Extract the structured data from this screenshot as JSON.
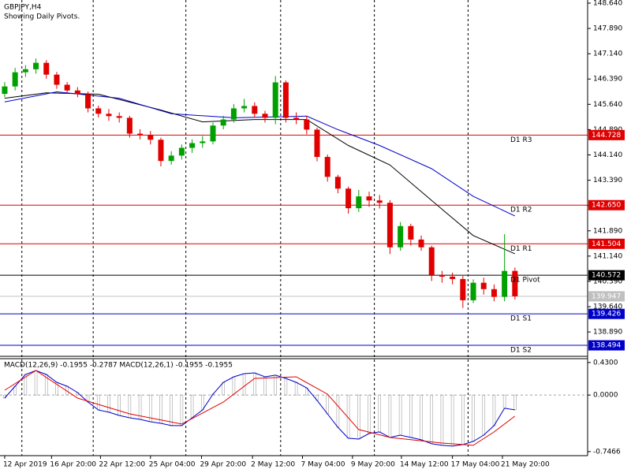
{
  "chart_data": [
    {
      "type": "candlestick",
      "title": "GBPJPY,H4",
      "subtitle": "Showing Daily Pivots.",
      "xlim": [
        -0.45,
        55.98
      ],
      "xticks": [
        {
          "value": 0,
          "label": "12 Apr 2019"
        },
        {
          "value": 4.5,
          "label": "16 Apr 20:00"
        },
        {
          "value": 9.2,
          "label": "22 Apr 12:00"
        },
        {
          "value": 14,
          "label": "25 Apr 04:00"
        },
        {
          "value": 18.9,
          "label": "29 Apr 20:00"
        },
        {
          "value": 23.8,
          "label": "2 May 12:00"
        },
        {
          "value": 28.6,
          "label": "7 May 04:00"
        },
        {
          "value": 33.4,
          "label": "9 May 20:00"
        },
        {
          "value": 38.1,
          "label": "14 May 12:00"
        },
        {
          "value": 43,
          "label": "17 May 04:00"
        },
        {
          "value": 47.8,
          "label": "21 May 20:00"
        }
      ],
      "xgrid": [
        1.65,
        8.5,
        17.4,
        26.5,
        35.5,
        44.5
      ],
      "ylim": [
        138.168,
        148.733
      ],
      "yticks": [
        {
          "value": 148.64,
          "label": "148.640"
        },
        {
          "value": 147.89,
          "label": "147.890"
        },
        {
          "value": 147.14,
          "label": "147.140"
        },
        {
          "value": 146.39,
          "label": "146.390"
        },
        {
          "value": 145.64,
          "label": "145.640"
        },
        {
          "value": 144.89,
          "label": "144.890"
        },
        {
          "value": 144.14,
          "label": "144.140"
        },
        {
          "value": 143.39,
          "label": "143.390"
        },
        {
          "value": 142.64,
          "label": "142.640"
        },
        {
          "value": 141.89,
          "label": "141.890"
        },
        {
          "value": 141.14,
          "label": "141.140"
        },
        {
          "value": 140.39,
          "label": "140.390"
        },
        {
          "value": 139.64,
          "label": "139.640"
        },
        {
          "value": 138.89,
          "label": "138.890"
        }
      ],
      "up_color": "#00a000",
      "down_color": "#e00000",
      "open": [
        145.95,
        146.17,
        146.59,
        146.68,
        146.87,
        146.52,
        146.22,
        146.05,
        145.94,
        145.52,
        145.36,
        145.29,
        145.24,
        144.77,
        144.73,
        144.59,
        143.96,
        144.12,
        144.35,
        144.49,
        144.54,
        145.01,
        145.19,
        145.52,
        145.59,
        145.36,
        145.24,
        146.29,
        145.24,
        145.19,
        144.89,
        144.08,
        143.49,
        143.14,
        142.56,
        142.91,
        142.79,
        142.72,
        141.4,
        142.03,
        141.63,
        141.4,
        140.58,
        140.53,
        140.46,
        139.83,
        140.35,
        140.16,
        139.93,
        140.7
      ],
      "high": [
        146.3,
        146.72,
        146.8,
        147.0,
        146.95,
        146.6,
        146.3,
        146.15,
        146.02,
        145.6,
        145.5,
        145.4,
        145.3,
        144.9,
        144.85,
        144.65,
        144.25,
        144.45,
        144.6,
        144.7,
        145.1,
        145.3,
        145.65,
        145.8,
        145.7,
        145.45,
        146.48,
        146.35,
        145.4,
        145.3,
        144.95,
        144.15,
        143.55,
        143.2,
        143.1,
        143.05,
        142.95,
        142.8,
        142.15,
        142.1,
        141.75,
        141.45,
        140.7,
        140.65,
        140.55,
        140.45,
        140.5,
        140.3,
        141.79,
        140.8
      ],
      "low": [
        145.85,
        146.05,
        146.45,
        146.55,
        146.4,
        146.1,
        145.95,
        145.85,
        145.4,
        145.25,
        145.15,
        145.1,
        144.65,
        144.6,
        144.45,
        143.8,
        143.85,
        144.0,
        144.2,
        144.35,
        144.45,
        144.9,
        145.1,
        145.4,
        145.25,
        145.1,
        145.05,
        145.1,
        145.05,
        144.75,
        143.95,
        143.35,
        143.0,
        142.4,
        142.45,
        142.6,
        142.55,
        141.2,
        141.3,
        141.45,
        141.3,
        140.4,
        140.35,
        140.3,
        139.6,
        139.75,
        140.0,
        139.8,
        139.8,
        139.85
      ],
      "close": [
        146.17,
        146.59,
        146.68,
        146.87,
        146.52,
        146.22,
        146.05,
        145.94,
        145.52,
        145.36,
        145.29,
        145.24,
        144.77,
        144.73,
        144.59,
        143.96,
        144.12,
        144.35,
        144.49,
        144.54,
        145.01,
        145.19,
        145.52,
        145.59,
        145.36,
        145.24,
        146.29,
        145.24,
        145.19,
        144.89,
        144.08,
        143.49,
        143.14,
        142.56,
        142.91,
        142.79,
        142.72,
        141.4,
        142.03,
        141.63,
        141.4,
        140.58,
        140.53,
        140.46,
        139.83,
        140.35,
        140.16,
        139.93,
        140.7,
        139.947
      ],
      "lines": [
        {
          "color": "#000000",
          "x": [
            0,
            4,
            9,
            15,
            19,
            24,
            29,
            33,
            37,
            41,
            45,
            49
          ],
          "values": [
            145.82,
            145.98,
            145.94,
            145.47,
            145.12,
            145.19,
            145.19,
            144.42,
            143.84,
            142.79,
            141.75,
            141.21
          ]
        },
        {
          "color": "#0000c8",
          "x": [
            0,
            5,
            11,
            16,
            22,
            29,
            32,
            36,
            41,
            45,
            49
          ],
          "values": [
            145.71,
            146.01,
            145.82,
            145.36,
            145.24,
            145.29,
            144.89,
            144.42,
            143.73,
            142.91,
            142.33
          ]
        }
      ],
      "pivots": {
        "names": [
          "D1 R3",
          "D1 R2",
          "D1 R1",
          "D1 Pivot",
          "D1 S1",
          "D1 S2"
        ],
        "values": [
          144.728,
          142.65,
          141.504,
          140.572,
          139.426,
          138.494
        ],
        "value_labels": [
          "144.728",
          "142.650",
          "141.504",
          "140.572",
          "139.426",
          "138.494"
        ],
        "colors": [
          "#e00000",
          "#e00000",
          "#e00000",
          "#000000",
          "#0000c8",
          "#0000c8"
        ]
      },
      "current": {
        "value": 139.947,
        "value_label": "139.947",
        "color": "#c0c0c0"
      }
    },
    {
      "type": "macd",
      "label": "MACD(12,26,9) -0.1955 -0.2787 MACD(12,26,1) -0.1955 -0.1955",
      "ylim": [
        -0.8,
        0.48
      ],
      "yticks": [
        {
          "value": 0.43,
          "label": "0.4300"
        },
        {
          "value": 0,
          "label": "0.0000"
        },
        {
          "value": -0.7466,
          "label": "-0.7466"
        }
      ],
      "bar_color": "#a0a0a0",
      "macd": {
        "color": "#0000c8",
        "values": [
          -0.04,
          0.116,
          0.272,
          0.324,
          0.272,
          0.168,
          0.116,
          0.033,
          -0.092,
          -0.196,
          -0.227,
          -0.269,
          -0.3,
          -0.321,
          -0.352,
          -0.373,
          -0.404,
          -0.404,
          -0.3,
          -0.196,
          0.012,
          0.168,
          0.241,
          0.282,
          0.293,
          0.241,
          0.262,
          0.22,
          0.168,
          0.095,
          -0.071,
          -0.248,
          -0.425,
          -0.57,
          -0.581,
          -0.508,
          -0.487,
          -0.56,
          -0.529,
          -0.56,
          -0.591,
          -0.643,
          -0.664,
          -0.674,
          -0.654,
          -0.612,
          -0.529,
          -0.404,
          -0.175,
          -0.1955
        ]
      },
      "signal": {
        "color": "#e00000",
        "x": [
          0,
          3,
          7,
          12,
          17,
          21,
          24,
          28,
          31,
          34,
          37,
          42,
          45,
          47,
          49
        ],
        "values": [
          0.064,
          0.324,
          -0.04,
          -0.248,
          -0.383,
          -0.092,
          0.22,
          0.241,
          0.012,
          -0.456,
          -0.56,
          -0.633,
          -0.664,
          -0.487,
          -0.2787
        ]
      }
    }
  ]
}
